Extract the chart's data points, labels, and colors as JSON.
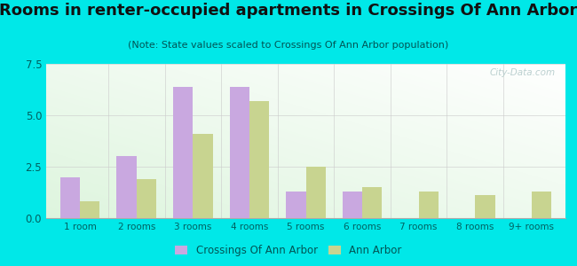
{
  "title": "Rooms in renter-occupied apartments in Crossings Of Ann Arbor",
  "subtitle": "(Note: State values scaled to Crossings Of Ann Arbor population)",
  "categories": [
    "1 room",
    "2 rooms",
    "3 rooms",
    "4 rooms",
    "5 rooms",
    "6 rooms",
    "7 rooms",
    "8 rooms",
    "9+ rooms"
  ],
  "crossings_values": [
    2.0,
    3.0,
    6.4,
    6.4,
    1.3,
    1.3,
    0.0,
    0.0,
    0.0
  ],
  "annarbor_values": [
    0.8,
    1.9,
    4.1,
    5.7,
    2.5,
    1.5,
    1.3,
    1.1,
    1.3
  ],
  "crossings_color": "#c9a8e0",
  "annarbor_color": "#c8d490",
  "background_outer": "#00e8e8",
  "ylim": [
    0,
    7.5
  ],
  "yticks": [
    0,
    2.5,
    5,
    7.5
  ],
  "bar_width": 0.35,
  "legend_crossings": "Crossings Of Ann Arbor",
  "legend_annarbor": "Ann Arbor",
  "title_fontsize": 13,
  "subtitle_fontsize": 8,
  "watermark": "City-Data.com",
  "tick_color": "#006060",
  "label_color": "#005555"
}
